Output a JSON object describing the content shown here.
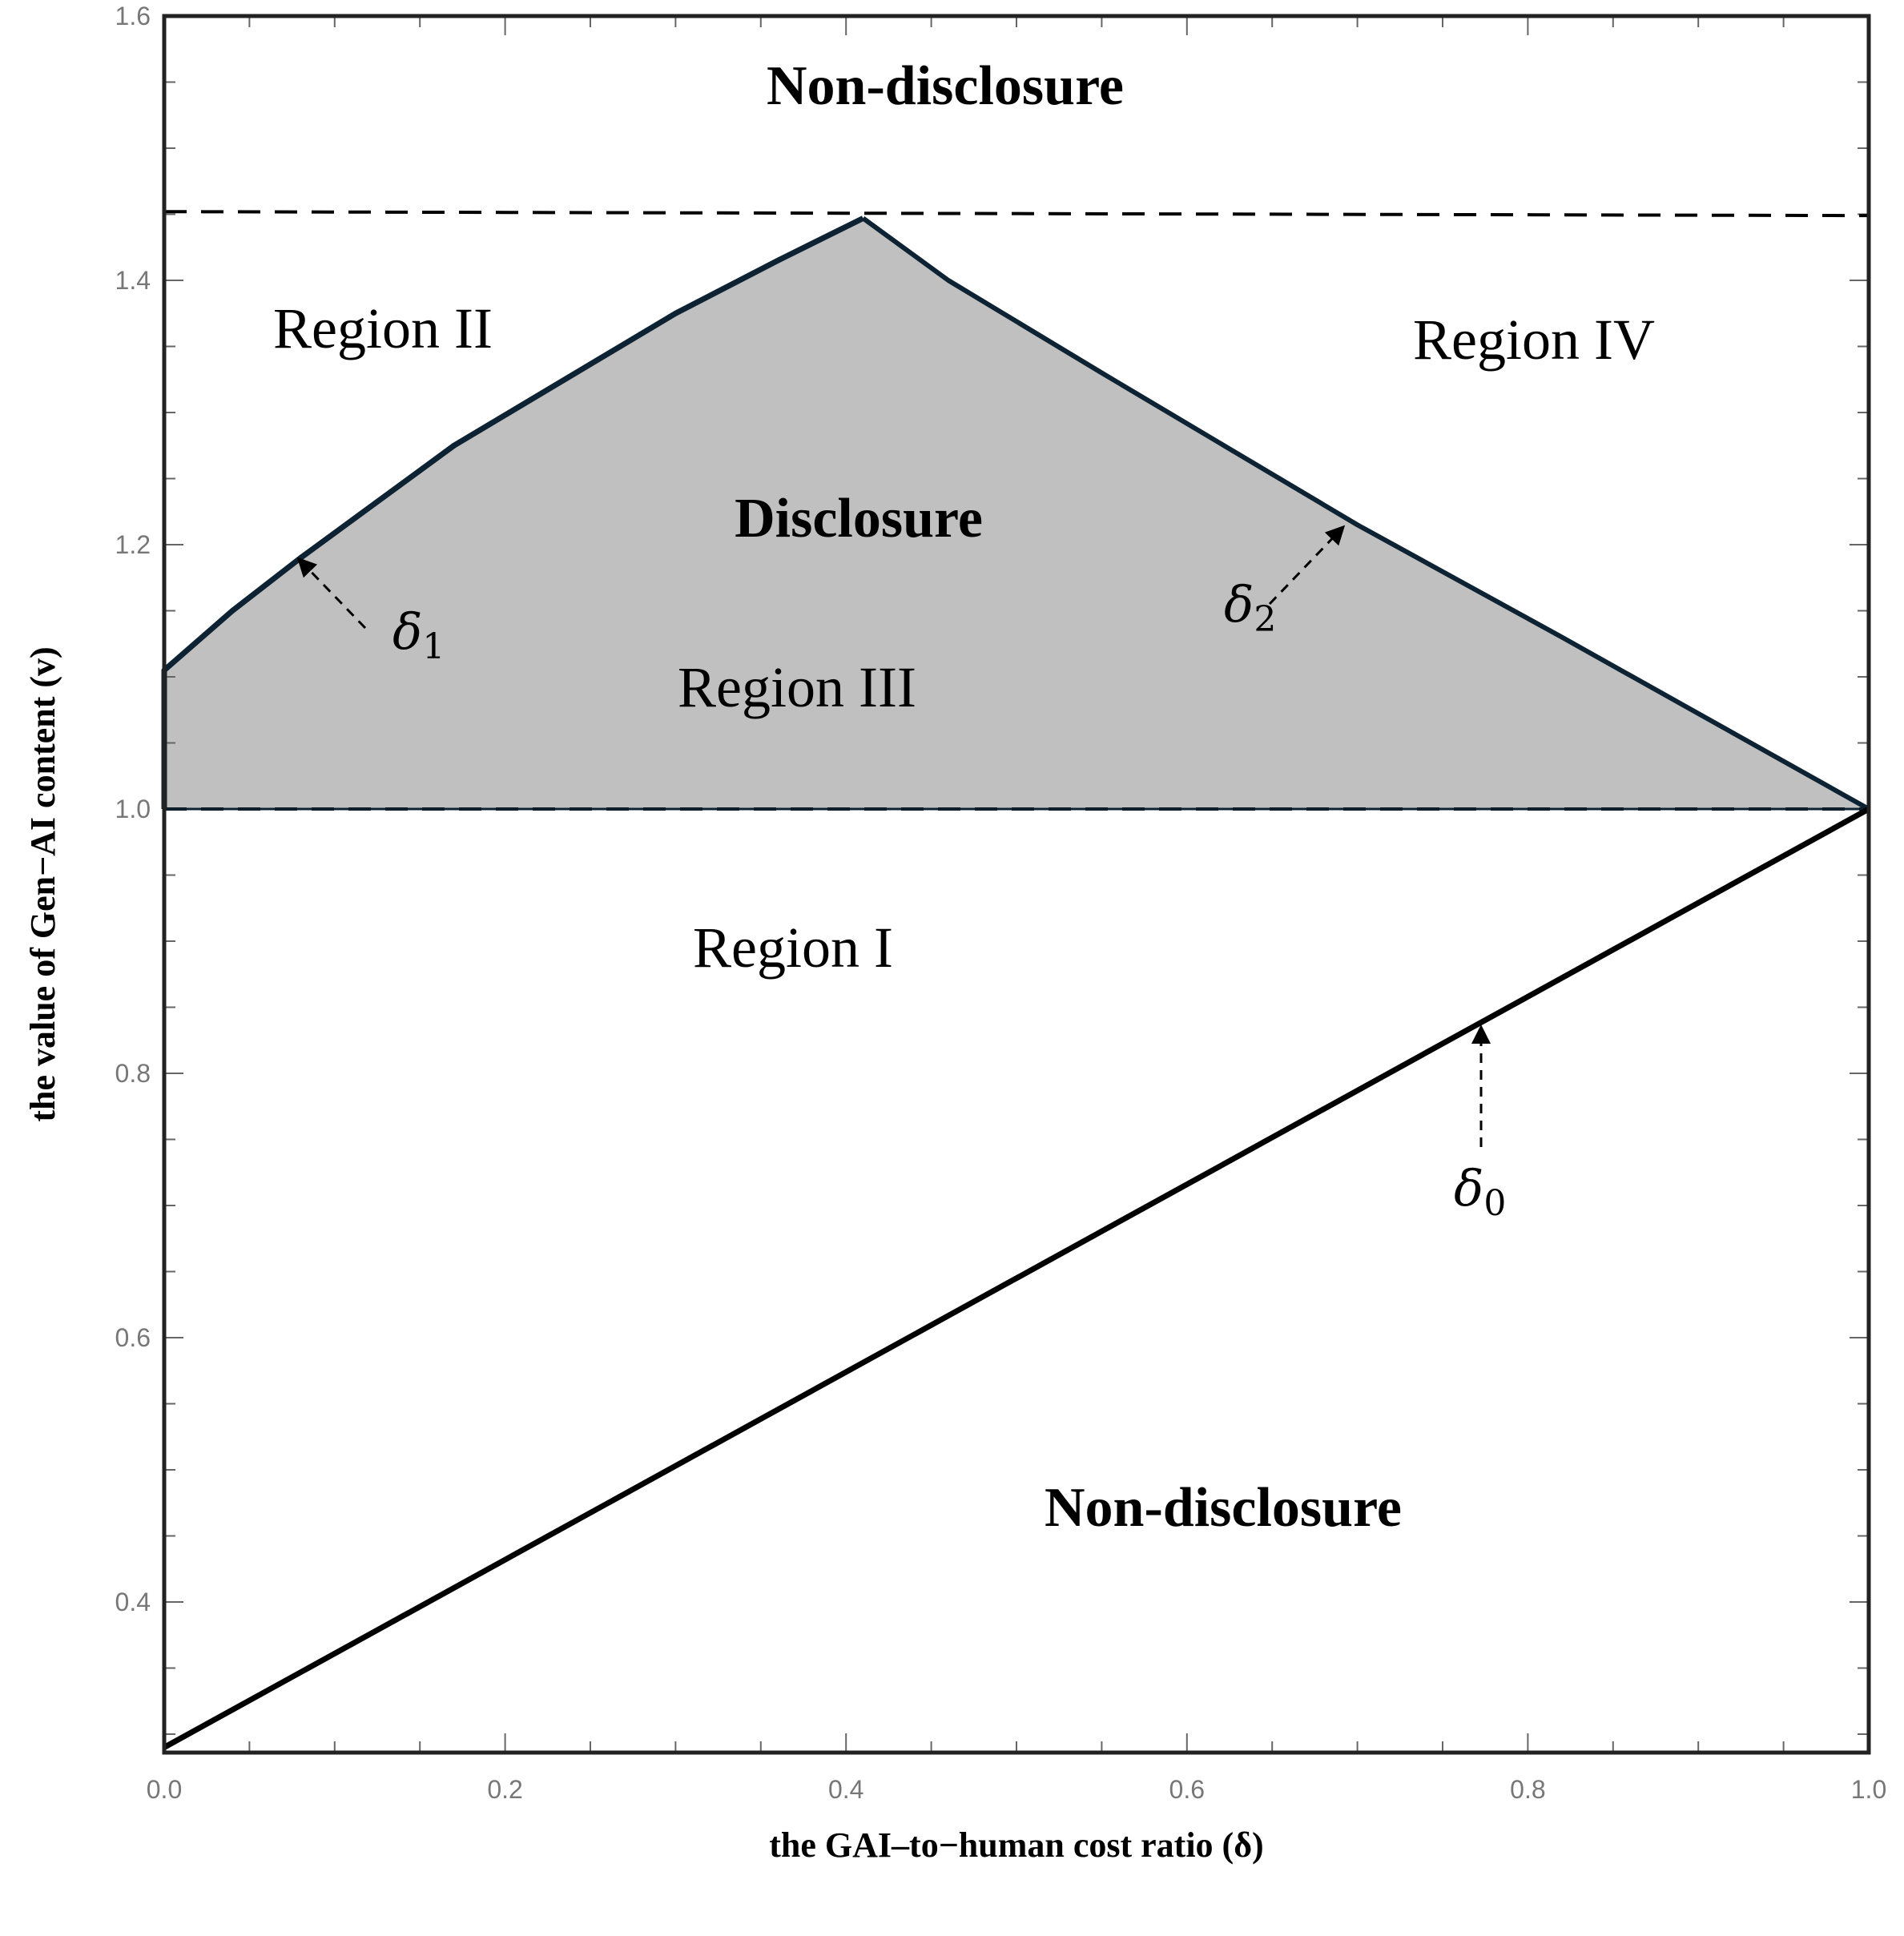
{
  "chart_data": {
    "type": "area",
    "title": "",
    "xlabel": "the GAI–to−human cost ratio (δ)",
    "ylabel": "the value of Gen−AI content (v)",
    "xlim": [
      0.0,
      1.0
    ],
    "ylim": [
      0.29,
      1.6
    ],
    "x_ticks": [
      "0.0",
      "0.2",
      "0.4",
      "0.6",
      "0.8",
      "1.0"
    ],
    "y_ticks": [
      "0.4",
      "0.6",
      "0.8",
      "1.0",
      "1.2",
      "1.4",
      "1.6"
    ],
    "grid": false,
    "series": [
      {
        "name": "δ1",
        "x": [
          0.0,
          0.0,
          0.04,
          0.08,
          0.17,
          0.3,
          0.36,
          0.41
        ],
        "y": [
          1.0,
          1.105,
          1.15,
          1.19,
          1.275,
          1.375,
          1.415,
          1.447
        ]
      },
      {
        "name": "δ2",
        "x": [
          0.41,
          0.46,
          0.55,
          0.7,
          0.82,
          1.0
        ],
        "y": [
          1.447,
          1.4,
          1.33,
          1.215,
          1.13,
          1.0
        ]
      },
      {
        "name": "δ0",
        "x": [
          0.0,
          1.0
        ],
        "y": [
          0.29,
          1.0
        ]
      },
      {
        "name": "upper-dashed",
        "x": [
          0.0,
          1.0
        ],
        "y": [
          1.452,
          1.449
        ]
      },
      {
        "name": "lower-dashed",
        "x": [
          0.0,
          1.0
        ],
        "y": [
          1.0,
          1.0
        ]
      }
    ],
    "shaded_region": "Disclosure",
    "annotations": {
      "non_disclosure_top": "Non-disclosure",
      "region_2": "Region II",
      "region_4": "Region IV",
      "disclosure": "Disclosure",
      "region_3": "Region III",
      "region_1": "Region I",
      "non_disclosure_bottom": "Non-disclosure",
      "delta": "δ",
      "sub_1": "1",
      "sub_2": "2",
      "sub_0": "0"
    },
    "colors": {
      "fill": "#c0c0c0",
      "boundary": "#0d2233",
      "line": "#000000"
    }
  }
}
